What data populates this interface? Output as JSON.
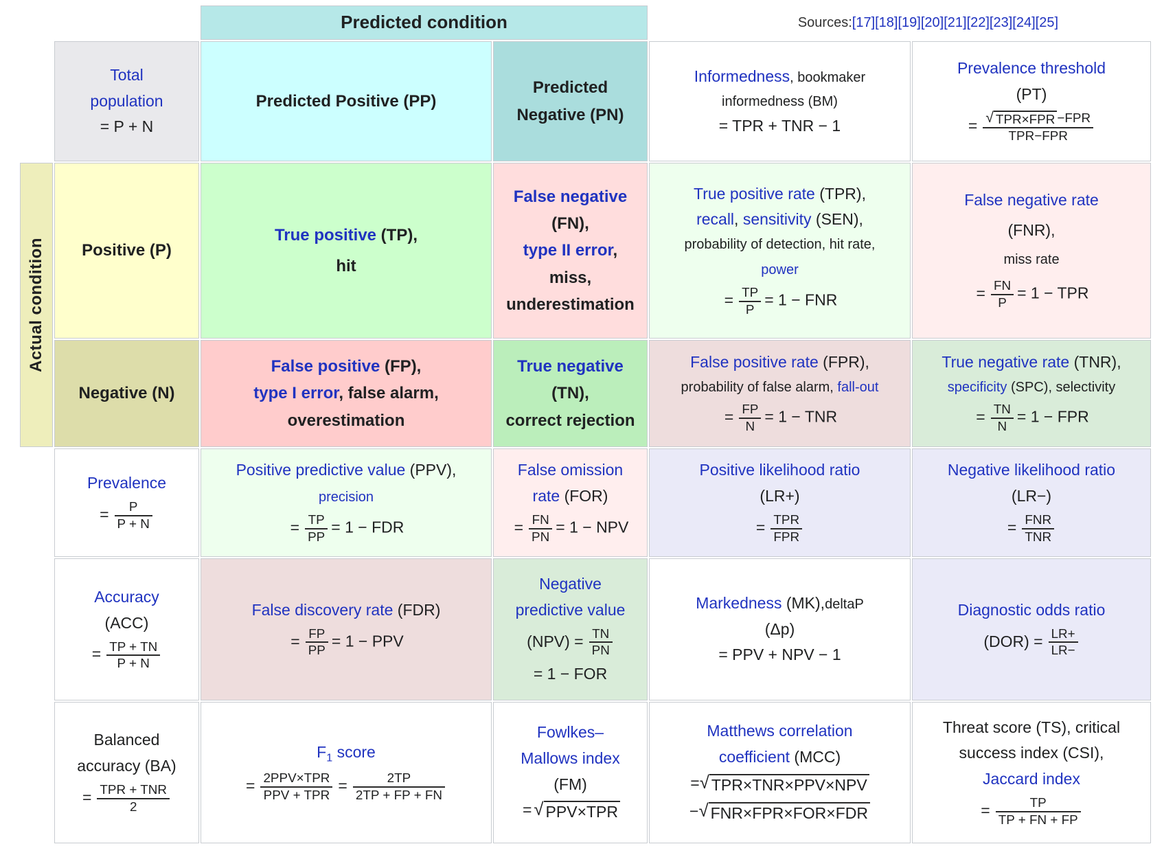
{
  "palette": {
    "link_blue": "#2033c0",
    "text": "#202122",
    "border_gray": "#c8ccd1",
    "bar_teal": "#b6e8e8",
    "pp_cyan": "#ccffff",
    "pn_teal": "#aadddd",
    "actual_olive": "#eeeebb",
    "pos_yellow": "#ffffcc",
    "neg_olive": "#ddddaa",
    "tp_green": "#ccffcc",
    "fn_pink": "#ffdddd",
    "fp_pink": "#ffcccc",
    "tn_green": "#bbeebb",
    "pale_green": "#eeffee",
    "pale_pink": "#ffeeee",
    "dusty_rose": "#eedddd",
    "mid_green": "#d9ecd9",
    "lavender": "#eaeaf8",
    "label_gray": "#e9e9ec"
  },
  "sources": {
    "label": "Sources: ",
    "refs": "[17][18][19][20][21][22][23][24][25]"
  },
  "headers": {
    "predicted": "Predicted condition",
    "actual": "Actual condition",
    "total_link": "Total",
    "total_link2": "population",
    "total_eq": "= P + N",
    "pp": "Predicted Positive (PP)",
    "pn1": "Predicted",
    "pn2": "Negative (PN)",
    "pos": "Positive (P)",
    "neg": "Negative (N)"
  },
  "tp": {
    "link": "True positive",
    "t1": " (TP),",
    "t2": "hit"
  },
  "fn": {
    "link": "False negative",
    "t1": "(FN),",
    "link2": "type II error",
    "t2": ",",
    "t3": "miss,",
    "t4": "underestimation"
  },
  "fp": {
    "link": "False positive",
    "t1": " (FP),",
    "link2": "type I error",
    "t2": ", false alarm,",
    "t3": "overestimation"
  },
  "tn": {
    "link": "True negative",
    "t1": "(TN),",
    "t2": "correct rejection"
  },
  "informedness": {
    "link": "Informedness",
    "t1": ", bookmaker",
    "t2": "informedness (BM)",
    "eq": "= TPR + TNR − 1"
  },
  "pt": {
    "link": "Prevalence threshold",
    "t1": "(PT)",
    "eq": "=",
    "sqrt": "TPR×FPR",
    "num_tail": "−FPR",
    "den": "TPR−FPR"
  },
  "tpr": {
    "link": "True positive rate",
    "t1": " (TPR),",
    "link2": "recall",
    "t2": ", ",
    "link3": "sensitivity",
    "t3": " (SEN),",
    "t4": "probability of detection, hit rate,",
    "link4": "power",
    "eq": "=",
    "num": "TP",
    "den": "P",
    "tail": "= 1 − FNR"
  },
  "fnr": {
    "link": "False negative rate",
    "t1": "(FNR),",
    "t2": "miss rate",
    "eq": "=",
    "num": "FN",
    "den": "P",
    "tail": "= 1 − TPR"
  },
  "fpr": {
    "link": "False positive rate",
    "t1": " (FPR),",
    "t2": "probability of false alarm, ",
    "link2": "fall-out",
    "eq": "=",
    "num": "FP",
    "den": "N",
    "tail": "= 1 − TNR"
  },
  "tnr": {
    "link": "True negative rate",
    "t1": " (TNR),",
    "link2": "specificity",
    "t2": " (SPC), selectivity",
    "eq": "=",
    "num": "TN",
    "den": "N",
    "tail": "= 1 − FPR"
  },
  "prevalence": {
    "link": "Prevalence",
    "eq": "=",
    "num": "P",
    "den": "P + N"
  },
  "ppv": {
    "link": "Positive predictive value",
    "t1": " (PPV),",
    "link2": "precision",
    "eq": "=",
    "num": "TP",
    "den": "PP",
    "tail": "= 1 − FDR"
  },
  "for": {
    "link1": "False omission",
    "link2": "rate",
    "t1": " (FOR)",
    "eq": "=",
    "num": "FN",
    "den": "PN",
    "tail": "= 1 − NPV"
  },
  "lrp": {
    "link": "Positive likelihood ratio",
    "t1": "(LR+)",
    "eq": "=",
    "num": "TPR",
    "den": "FPR"
  },
  "lrn": {
    "link": "Negative likelihood ratio",
    "t1": "(LR−)",
    "eq": "=",
    "num": "FNR",
    "den": "TNR"
  },
  "acc": {
    "link": "Accuracy",
    "t1": "(ACC)",
    "eq": "=",
    "num": "TP + TN",
    "den": "P + N"
  },
  "fdr": {
    "link": "False discovery rate",
    "t1": " (FDR)",
    "eq": "=",
    "num": "FP",
    "den": "PP",
    "tail": "= 1 − PPV"
  },
  "npv": {
    "link1": "Negative",
    "link2": "predictive value",
    "t1": "(NPV) =",
    "num": "TN",
    "den": "PN",
    "t2": "= 1 − FOR"
  },
  "mk": {
    "link": "Markedness",
    "t1": " (MK),",
    "t2": "deltaP",
    "t3": "(Δp)",
    "eq": "= PPV + NPV − 1"
  },
  "dor": {
    "link": "Diagnostic odds ratio",
    "t1": "(DOR) =",
    "num": "LR+",
    "den": "LR−"
  },
  "ba": {
    "t1": "Balanced",
    "t2": "accuracy (BA)",
    "eq": "=",
    "num": "TPR + TNR",
    "den": "2"
  },
  "f1": {
    "link_f": "F",
    "link_sub": "1",
    "link_rest": " score",
    "eq1": "=",
    "num1": "2PPV×TPR",
    "den1": "PPV + TPR",
    "eq2": "=",
    "num2": "2TP",
    "den2": "2TP + FP + FN"
  },
  "fm": {
    "link1": "Fowlkes–",
    "link2": "Mallows index",
    "t1": "(FM)",
    "eq": "=",
    "sqrt": "PPV×TPR"
  },
  "mcc": {
    "link1": "Matthews correlation",
    "link2": "coefficient",
    "t1": " (MCC)",
    "eq1": "=",
    "sqrt1": "TPR×TNR×PPV×NPV",
    "eq2": "−",
    "sqrt2": "FNR×FPR×FOR×FDR"
  },
  "ts": {
    "t1": "Threat score (TS), critical",
    "t2": "success index (CSI),",
    "link": "Jaccard index",
    "eq": "=",
    "num": "TP",
    "den": "TP + FN + FP"
  }
}
